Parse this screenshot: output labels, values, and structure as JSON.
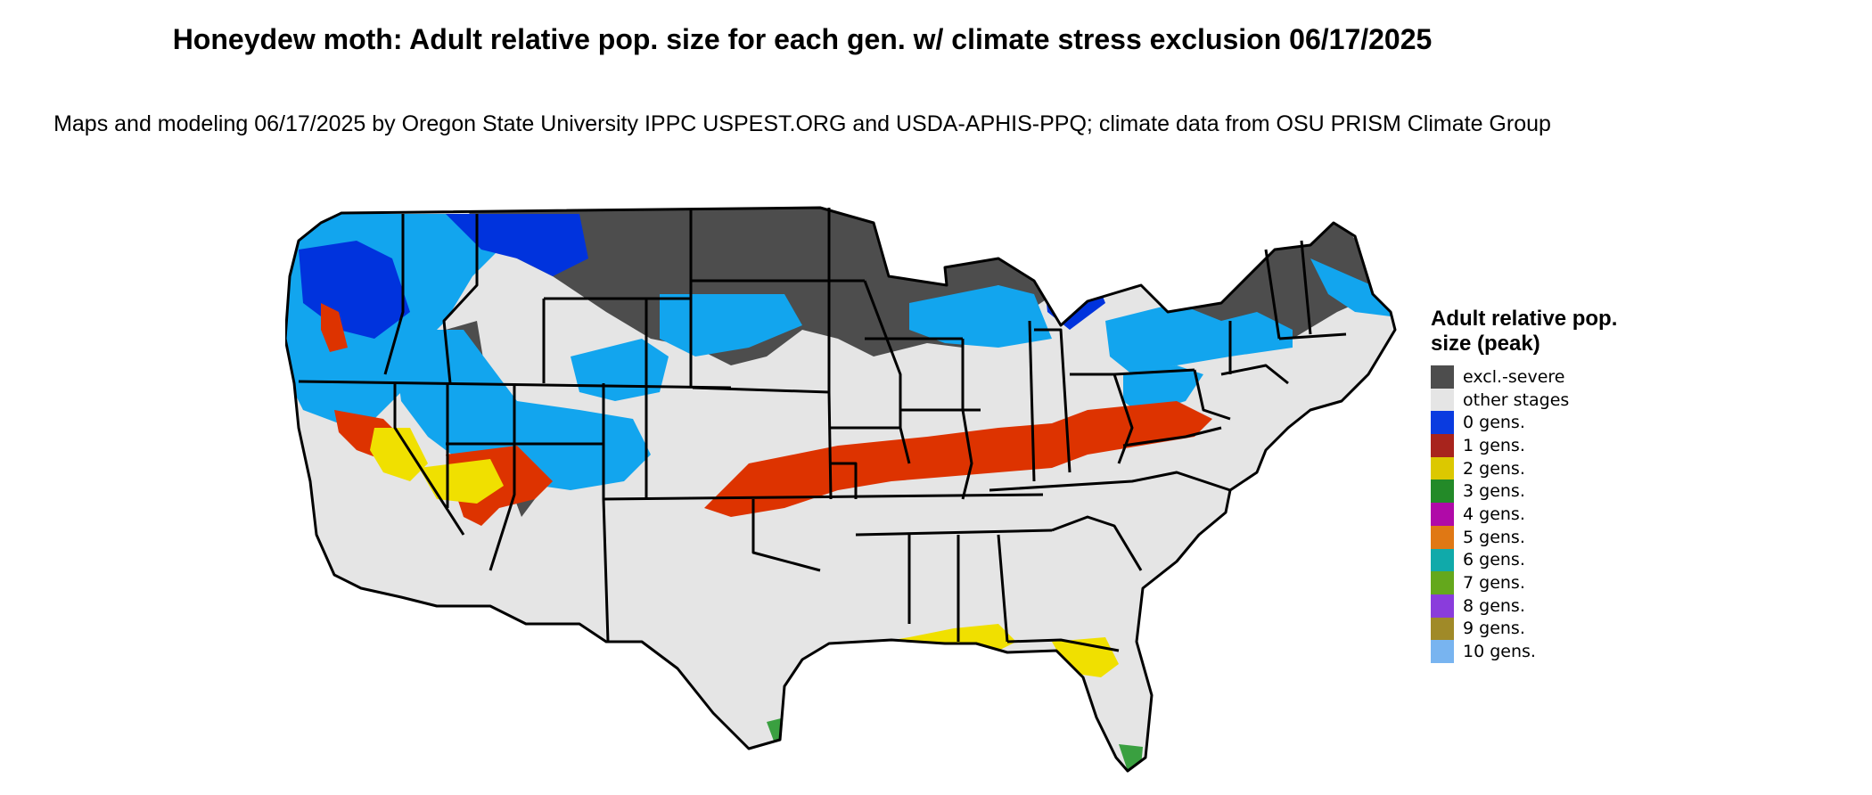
{
  "figure": {
    "title": "Honeydew moth: Adult relative pop. size for each gen. w/ climate stress exclusion 06/17/2025",
    "subtitle": "Maps and modeling 06/17/2025 by Oregon State University IPPC USPEST.ORG and USDA-APHIS-PPQ; climate data from OSU PRISM Climate Group"
  },
  "map": {
    "region": "Contiguous United States",
    "layer_colors": {
      "excluded_severe": "#4d4d4d",
      "other_stages": "#e5e5e5",
      "gens_0": "#0033dd",
      "gens_0_light": "#12a5ee",
      "gens_1": "#dd3300",
      "gens_2": "#f0e000",
      "gens_3": "#3aa040",
      "state_border": "#000000"
    }
  },
  "legend": {
    "title": "Adult relative pop. size (peak)",
    "items": [
      {
        "label": "excl.-severe",
        "color": "#4d4d4d"
      },
      {
        "label": "other stages",
        "color": "#e5e5e5"
      },
      {
        "label": "0 gens.",
        "color": "#0a3be0"
      },
      {
        "label": "1 gens.",
        "color": "#a8241d"
      },
      {
        "label": "2 gens.",
        "color": "#dcc800"
      },
      {
        "label": "3 gens.",
        "color": "#238a28"
      },
      {
        "label": "4 gens.",
        "color": "#b00aa8"
      },
      {
        "label": "5 gens.",
        "color": "#e07814"
      },
      {
        "label": "6 gens.",
        "color": "#10aaaa"
      },
      {
        "label": "7 gens.",
        "color": "#64a81c"
      },
      {
        "label": "8 gens.",
        "color": "#8a3cdc"
      },
      {
        "label": "9 gens.",
        "color": "#a08a28"
      },
      {
        "label": "10 gens.",
        "color": "#78b4f0"
      }
    ]
  }
}
